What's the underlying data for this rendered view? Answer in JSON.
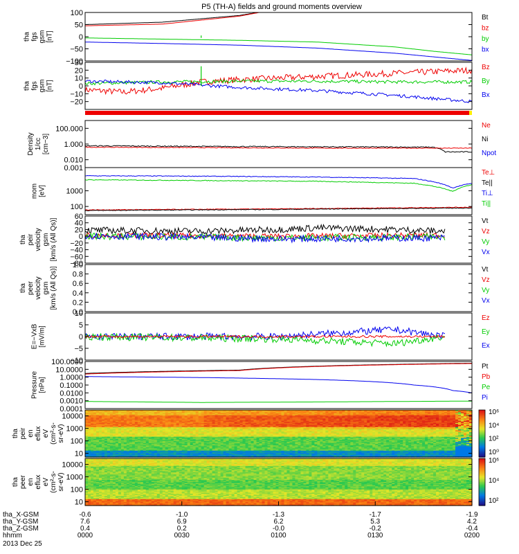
{
  "title": "P5 (TH-A) fields and ground moments overview",
  "date_label": "2013 Dec 25",
  "chart_data": [
    {
      "type": "line",
      "ylabel": [
        "tha",
        "fgs",
        "gsm",
        "[nT]"
      ],
      "ylim": [
        -100,
        100
      ],
      "log": false,
      "yticks": [
        100,
        50,
        0,
        -50,
        -100
      ],
      "tick_labels": [
        "100",
        "50",
        "0",
        "−50",
        "−100"
      ],
      "legend": [
        "Bt",
        "bz",
        "by",
        "bx"
      ],
      "legend_colors": [
        "#000000",
        "#ee0000",
        "#00cc00",
        "#0000ee"
      ],
      "series": [
        {
          "name": "Bt",
          "color": "#000000",
          "x": [
            0,
            0.2,
            0.4,
            0.45
          ],
          "y": [
            50,
            60,
            88,
            101
          ]
        },
        {
          "name": "bz",
          "color": "#ee0000",
          "x": [
            0,
            0.2,
            0.4,
            0.45
          ],
          "y": [
            45,
            52,
            85,
            100
          ]
        },
        {
          "name": "by",
          "color": "#00cc00",
          "x": [
            0,
            0.2,
            0.4,
            0.6,
            0.8,
            0.9,
            1
          ],
          "y": [
            -5,
            -10,
            -15,
            -22,
            -42,
            -60,
            -75
          ]
        },
        {
          "name": "bx",
          "color": "#0000ee",
          "x": [
            0,
            0.2,
            0.4,
            0.6,
            0.8,
            1
          ],
          "y": [
            -22,
            -28,
            -35,
            -47,
            -68,
            -98
          ]
        }
      ],
      "spike": {
        "x": 0.3,
        "y": [
          -5,
          5
        ],
        "color": "#00cc00"
      }
    },
    {
      "type": "line",
      "ylabel": [
        "tha",
        "fgs",
        "gsm",
        "[nT]"
      ],
      "ylim": [
        -30,
        30
      ],
      "log": false,
      "yticks": [
        30,
        20,
        10,
        0,
        -10,
        -20
      ],
      "tick_labels": [
        "30",
        "20",
        "10",
        "0",
        "−10",
        "−20"
      ],
      "legend": [
        "Bz",
        "By",
        "Bx"
      ],
      "legend_colors": [
        "#ee0000",
        "#00cc00",
        "#0000ee"
      ],
      "series": [
        {
          "name": "Bz",
          "color": "#ee0000",
          "x": [
            0,
            0.1,
            0.2,
            0.3,
            0.4,
            0.5,
            0.6,
            0.7,
            0.8,
            0.9,
            1
          ],
          "y": [
            -5,
            -8,
            -3,
            5,
            8,
            10,
            12,
            14,
            16,
            18,
            20
          ],
          "noise": 4
        },
        {
          "name": "By",
          "color": "#00cc00",
          "x": [
            0,
            0.2,
            0.4,
            0.6,
            0.8,
            1
          ],
          "y": [
            3,
            5,
            6,
            6,
            5,
            5
          ],
          "noise": 2
        },
        {
          "name": "Bx",
          "color": "#0000ee",
          "x": [
            0,
            0.2,
            0.4,
            0.6,
            0.8,
            1
          ],
          "y": [
            6,
            4,
            -2,
            -6,
            -12,
            -20
          ],
          "noise": 2
        }
      ],
      "spike": {
        "x": 0.3,
        "y": [
          0,
          25
        ],
        "color": "#00cc00"
      },
      "bar_color": "#ee0000"
    },
    {
      "type": "line",
      "ylabel": [
        "Density",
        "1/cc",
        "[cm−3]"
      ],
      "ylim": [
        0.001,
        1000
      ],
      "log": true,
      "yticks": [
        100,
        1,
        0.01,
        0.001
      ],
      "tick_labels": [
        "100.000",
        "1.000",
        "0.010",
        "0.001"
      ],
      "legend": [
        "Ne",
        "Ni",
        "Npot"
      ],
      "legend_colors": [
        "#ee0000",
        "#000000",
        "#0000ee"
      ],
      "series": [
        {
          "name": "Ni",
          "color": "#000000",
          "x": [
            0,
            0.3,
            0.6,
            0.9,
            0.93,
            1
          ],
          "y": [
            0.6,
            0.5,
            0.45,
            0.4,
            0.1,
            0.1
          ],
          "noise": 0.15
        },
        {
          "name": "Ne",
          "color": "#ee0000",
          "x": [
            0,
            0.3,
            0.6,
            0.9,
            1
          ],
          "y": [
            0.4,
            0.35,
            0.3,
            0.3,
            0.3
          ],
          "noise": 0.1
        }
      ]
    },
    {
      "type": "line",
      "ylabel": [
        "mom",
        "[eV]"
      ],
      "ylim": [
        30,
        30000
      ],
      "log": true,
      "yticks": [
        1000,
        100
      ],
      "tick_labels": [
        "1000",
        "100"
      ],
      "legend": [
        "Te⊥",
        "Te||",
        "Ti⊥",
        "Ti||"
      ],
      "legend_colors": [
        "#ee0000",
        "#000000",
        "#0000ee",
        "#00cc00"
      ],
      "series": [
        {
          "name": "Ti⊥",
          "color": "#0000ee",
          "x": [
            0,
            0.3,
            0.6,
            0.85,
            0.95,
            1
          ],
          "y": [
            9000,
            8500,
            7500,
            6000,
            1500,
            3000
          ],
          "noise": 0.05
        },
        {
          "name": "Ti||",
          "color": "#00cc00",
          "x": [
            0,
            0.3,
            0.6,
            0.85,
            0.95,
            1
          ],
          "y": [
            5000,
            4500,
            4000,
            3000,
            900,
            2500
          ],
          "noise": 0.05
        },
        {
          "name": "Te⊥",
          "color": "#ee0000",
          "x": [
            0,
            0.5,
            1
          ],
          "y": [
            60,
            70,
            90
          ],
          "noise": 0.05
        },
        {
          "name": "Te||",
          "color": "#000000",
          "x": [
            0,
            0.5,
            1
          ],
          "y": [
            55,
            65,
            80
          ],
          "noise": 0.05
        }
      ]
    },
    {
      "type": "line",
      "ylabel": [
        "tha",
        "peir",
        "velocity",
        "gsm",
        "[km/s (All Qs)]"
      ],
      "ylim": [
        -80,
        60
      ],
      "log": false,
      "yticks": [
        60,
        40,
        20,
        0,
        -20,
        -40,
        -60,
        -80
      ],
      "tick_labels": [
        "60",
        "40",
        "20",
        "0",
        "−20",
        "−40",
        "−60",
        "−80"
      ],
      "legend": [
        "Vt",
        "Vz",
        "Vy",
        "Vx"
      ],
      "legend_colors": [
        "#000000",
        "#ee0000",
        "#00cc00",
        "#0000ee"
      ],
      "series": [
        {
          "name": "Vt",
          "color": "#000000",
          "x": [
            0,
            0.3,
            0.5,
            0.6,
            0.8,
            0.93
          ],
          "y": [
            18,
            15,
            20,
            25,
            20,
            15
          ],
          "noise": 10
        },
        {
          "name": "Vz",
          "color": "#ee0000",
          "x": [
            0,
            0.5,
            0.93
          ],
          "y": [
            3,
            0,
            3
          ],
          "noise": 8
        },
        {
          "name": "Vy",
          "color": "#00cc00",
          "x": [
            0,
            0.5,
            0.93
          ],
          "y": [
            0,
            -5,
            -2
          ],
          "noise": 10
        },
        {
          "name": "Vx",
          "color": "#0000ee",
          "x": [
            0,
            0.5,
            0.93
          ],
          "y": [
            2,
            -8,
            -5
          ],
          "noise": 10
        }
      ],
      "x_end": 0.93
    },
    {
      "type": "line",
      "ylabel": [
        "tha",
        "peer",
        "velocity",
        "gsm",
        "[km/s (All Qs)]"
      ],
      "ylim": [
        0,
        1
      ],
      "log": false,
      "yticks": [
        1,
        0.8,
        0.6,
        0.4,
        0.2,
        0
      ],
      "tick_labels": [
        "1.0",
        "0.8",
        "0.6",
        "0.4",
        "0.2",
        "0.0"
      ],
      "legend": [
        "Vt",
        "Vz",
        "Vy",
        "Vx"
      ],
      "legend_colors": [
        "#000000",
        "#ee0000",
        "#00cc00",
        "#0000ee"
      ],
      "series": []
    },
    {
      "type": "line",
      "ylabel": [
        "E=−VxB",
        "[mV/m]"
      ],
      "ylim": [
        -10,
        10
      ],
      "log": false,
      "yticks": [
        10,
        5,
        0,
        -5,
        -10
      ],
      "tick_labels": [
        "10",
        "5",
        "0",
        "−5",
        "−10"
      ],
      "legend": [
        "Ez",
        "Ey",
        "Ex"
      ],
      "legend_colors": [
        "#ee0000",
        "#00cc00",
        "#0000ee"
      ],
      "series": [
        {
          "name": "Ex",
          "color": "#0000ee",
          "x": [
            0,
            0.5,
            0.8,
            0.93
          ],
          "y": [
            0,
            0,
            3,
            0
          ],
          "noise": 1.5
        },
        {
          "name": "Ey",
          "color": "#00cc00",
          "x": [
            0,
            0.5,
            0.8,
            0.93
          ],
          "y": [
            0,
            -1,
            -3,
            0
          ],
          "noise": 1.5
        },
        {
          "name": "Ez",
          "color": "#ee0000",
          "x": [
            0,
            0.5,
            0.93
          ],
          "y": [
            0,
            0,
            0
          ],
          "noise": 0.5
        }
      ],
      "x_end": 0.93
    },
    {
      "type": "line",
      "ylabel": [
        "Pressure",
        "[nPa]"
      ],
      "ylim": [
        0.0001,
        100
      ],
      "log": true,
      "yticks": [
        100,
        10,
        1,
        0.1,
        0.01,
        0.001,
        0.0001
      ],
      "tick_labels": [
        "100.0000",
        "10.0000",
        "1.0000",
        "0.1000",
        "0.0100",
        "0.0010",
        "0.0001"
      ],
      "legend": [
        "Pt",
        "Pb",
        "Pe",
        "Pi"
      ],
      "legend_colors": [
        "#000000",
        "#ee0000",
        "#00cc00",
        "#0000ee"
      ],
      "series": [
        {
          "name": "Pt",
          "color": "#000000",
          "x": [
            0,
            0.4,
            1
          ],
          "y": [
            3,
            8,
            60
          ]
        },
        {
          "name": "Pb",
          "color": "#ee0000",
          "x": [
            0,
            0.4,
            1
          ],
          "y": [
            2.5,
            7,
            55
          ]
        },
        {
          "name": "Pi",
          "color": "#0000ee",
          "x": [
            0,
            0.3,
            0.6,
            0.85,
            0.95,
            1
          ],
          "y": [
            1.2,
            0.9,
            0.5,
            0.1,
            0.02,
            0.01
          ]
        },
        {
          "name": "Pe",
          "color": "#00cc00",
          "x": [
            0,
            0.3,
            0.6,
            1
          ],
          "y": [
            0.0008,
            0.0006,
            0.0007,
            0.0009
          ]
        }
      ]
    },
    {
      "type": "heatmap",
      "ylabel": [
        "tha",
        "peir",
        "en",
        "eflux",
        "eV",
        "(cm²-s-",
        "sr-eV)"
      ],
      "ylim": [
        5,
        30000
      ],
      "log": true,
      "yticks": [
        10000,
        1000,
        100,
        10
      ],
      "tick_labels": [
        "10000",
        "1000",
        "100",
        "10"
      ],
      "colorbar": {
        "ticks": [
          "10⁶",
          "10⁴",
          "10²",
          "10⁰"
        ]
      },
      "bands": [
        [
          0.0,
          0.15,
          0.25
        ],
        [
          0.15,
          0.45,
          0.45
        ],
        [
          0.45,
          0.65,
          0.6
        ],
        [
          0.65,
          0.9,
          0.82
        ],
        [
          0.9,
          1.0,
          0.7
        ]
      ]
    },
    {
      "type": "heatmap",
      "ylabel": [
        "tha",
        "peer",
        "en",
        "eflux",
        "eV",
        "(cm²-s-",
        "sr-eV)"
      ],
      "ylim": [
        5,
        30000
      ],
      "log": true,
      "yticks": [
        10000,
        1000,
        100,
        10
      ],
      "tick_labels": [
        "10000",
        "1000",
        "100",
        "10"
      ],
      "colorbar": {
        "ticks": [
          "10⁶",
          "10⁴",
          "10²"
        ]
      },
      "bands": [
        [
          0.0,
          0.15,
          0.85
        ],
        [
          0.15,
          0.35,
          0.55
        ],
        [
          0.35,
          0.55,
          0.45
        ],
        [
          0.55,
          0.85,
          0.5
        ],
        [
          0.85,
          1.0,
          0.6
        ]
      ]
    }
  ],
  "x_axis": {
    "rows": [
      {
        "label": "tha_X-GSM",
        "values": [
          "-0.6",
          "-1.0",
          "-1.3",
          "-1.7",
          "-1.9"
        ]
      },
      {
        "label": "tha_Y-GSM",
        "values": [
          "7.6",
          "6.9",
          "6.2",
          "5.3",
          "4.2"
        ]
      },
      {
        "label": "tha_Z-GSM",
        "values": [
          "0.4",
          "0.2",
          "-0.0",
          "-0.2",
          "-0.4"
        ]
      },
      {
        "label": "hhmm",
        "values": [
          "0000",
          "0030",
          "0100",
          "0130",
          "0200"
        ]
      }
    ]
  }
}
